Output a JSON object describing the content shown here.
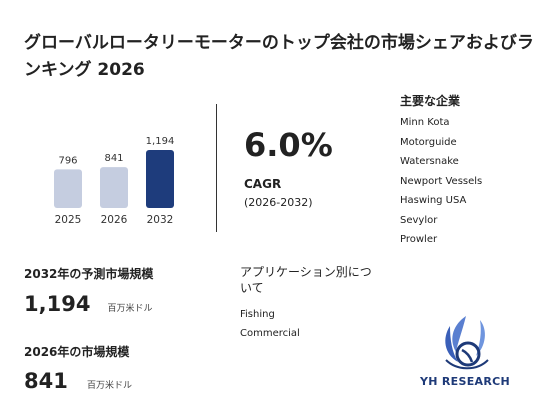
{
  "title": "グローバルロータリーモーターのトップ会社の市場シェアおよびランキング 2026",
  "chart_data": {
    "type": "bar",
    "categories": [
      "2025",
      "2026",
      "2032"
    ],
    "values": [
      796,
      841,
      1194
    ],
    "value_labels": [
      "796",
      "841",
      "1,194"
    ],
    "colors": [
      "#c5cde0",
      "#c5cde0",
      "#1e3c7c"
    ]
  },
  "cagr": {
    "value": "6.0%",
    "label": "CAGR",
    "period": "(2026-2032)"
  },
  "companies": {
    "heading": "主要な企業",
    "items": [
      "Minn Kota",
      "Motorguide",
      "Watersnake",
      "Newport Vessels",
      "Haswing USA",
      "Sevylor",
      "Prowler"
    ]
  },
  "stats": {
    "forecast": {
      "heading": "2032年の予測市場規模",
      "value": "1,194",
      "unit": "百万米ドル"
    },
    "current": {
      "heading": "2026年の市場規模",
      "value": "841",
      "unit": "百万米ドル"
    }
  },
  "applications": {
    "heading": "アプリケーション別について",
    "items": [
      "Fishing",
      "Commercial"
    ]
  },
  "brand": {
    "name": "YH RESEARCH",
    "color": "#1e3a78"
  }
}
